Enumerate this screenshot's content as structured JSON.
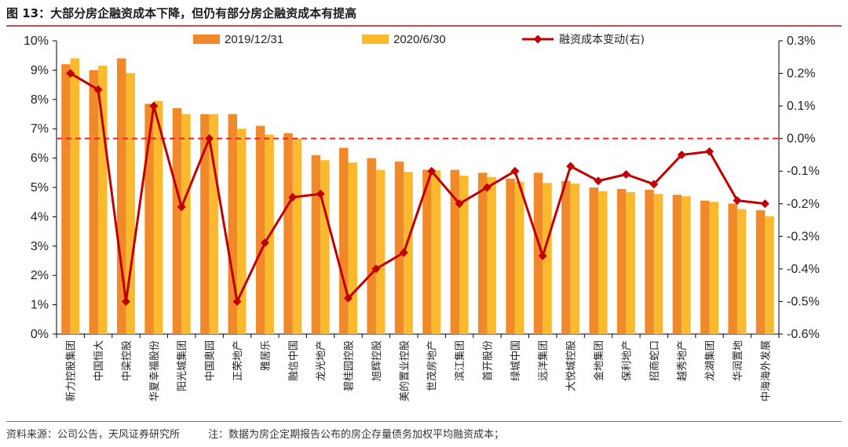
{
  "header": {
    "title": "图 13：大部分房企融资成本下降，但仍有部分房企融资成本有提高"
  },
  "footer": {
    "source": "资料来源：公司公告，天风证券研究所",
    "note": "注：数据为房企定期报告公布的房企存量债务加权平均融资成本；"
  },
  "colors": {
    "bar2019": "#f0892a",
    "bar2020": "#fbb92e",
    "line": "#c00000",
    "ref": "#e8232e",
    "axis": "#000000"
  },
  "chart_data": {
    "type": "bar+line",
    "categories": [
      "新力控股集团",
      "中国恒大",
      "中梁控股",
      "华夏幸福股份",
      "阳光城集团",
      "中国奥园",
      "正荣地产",
      "雅居乐",
      "融信中国",
      "龙光地产",
      "碧桂园控股",
      "旭辉控股",
      "美的置业控股",
      "世茂房地产",
      "滨江集团",
      "首开股份",
      "绿城中国",
      "远洋集团",
      "大悦城控股",
      "金地集团",
      "保利地产",
      "招商蛇口",
      "越秀地产",
      "龙湖集团",
      "华润置地",
      "中海海外发展"
    ],
    "series": [
      {
        "name": "2019/12/31",
        "axis": "left",
        "values": [
          9.2,
          9.0,
          9.4,
          7.85,
          7.7,
          7.5,
          7.5,
          7.1,
          6.85,
          6.1,
          6.35,
          6.0,
          5.88,
          5.6,
          5.6,
          5.5,
          5.3,
          5.5,
          5.22,
          5.0,
          4.95,
          4.92,
          4.75,
          4.55,
          4.45,
          4.22
        ]
      },
      {
        "name": "2020/6/30",
        "axis": "left",
        "values": [
          9.4,
          9.15,
          8.9,
          7.95,
          7.5,
          7.5,
          7.0,
          6.8,
          6.67,
          5.93,
          5.85,
          5.6,
          5.53,
          5.58,
          5.4,
          5.35,
          5.2,
          5.15,
          5.13,
          4.87,
          4.84,
          4.78,
          4.7,
          4.51,
          4.26,
          4.02
        ]
      },
      {
        "name": "融资成本变动(右)",
        "axis": "right",
        "values": [
          0.2,
          0.15,
          -0.5,
          0.1,
          -0.21,
          0.0,
          -0.5,
          -0.32,
          -0.18,
          -0.17,
          -0.49,
          -0.4,
          -0.35,
          -0.1,
          -0.2,
          -0.15,
          -0.1,
          -0.36,
          -0.085,
          -0.13,
          -0.11,
          -0.14,
          -0.05,
          -0.04,
          -0.19,
          -0.2
        ]
      }
    ],
    "yleft": {
      "min": 0,
      "max": 10,
      "step": 1,
      "ticks": [
        "0%",
        "1%",
        "2%",
        "3%",
        "4%",
        "5%",
        "6%",
        "7%",
        "8%",
        "9%",
        "10%"
      ]
    },
    "yright": {
      "min": -0.6,
      "max": 0.3,
      "step": 0.1,
      "ticks": [
        "-0.6%",
        "-0.5%",
        "-0.4%",
        "-0.3%",
        "-0.2%",
        "-0.1%",
        "0.0%",
        "0.1%",
        "0.2%",
        "0.3%"
      ]
    },
    "reference_line": {
      "axis": "right",
      "value": 0.0,
      "style": "dashed"
    },
    "legend_placement": "top",
    "grid": false
  }
}
